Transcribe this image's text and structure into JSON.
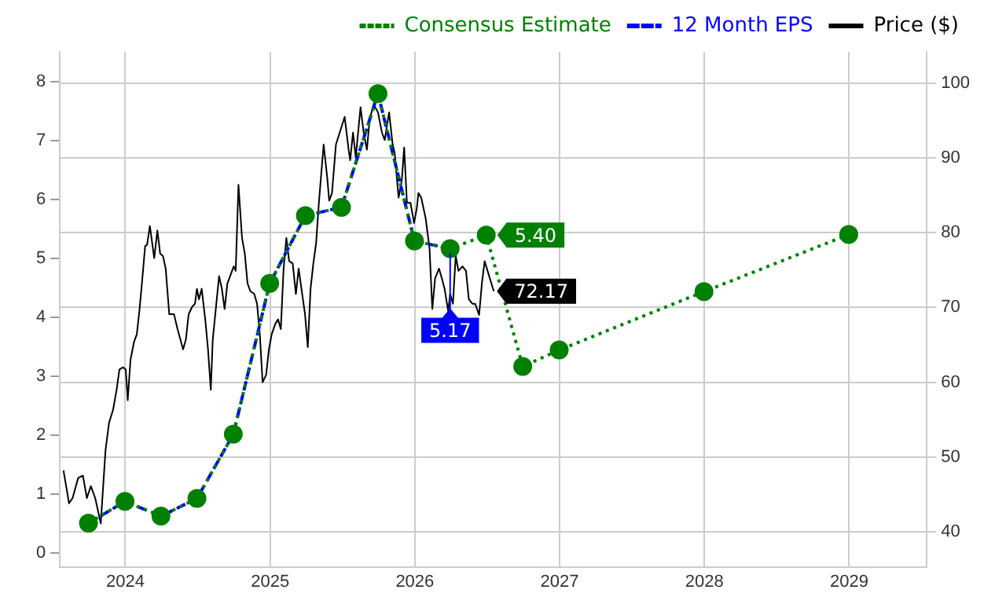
{
  "chart_data": {
    "type": "line",
    "legend": "top right",
    "grid": true,
    "xlim": [
      "2023-07-20",
      "2029-07-16"
    ],
    "xticks": [
      "2024",
      "2025",
      "2026",
      "2027",
      "2028",
      "2029"
    ],
    "ylim": [
      -0.23,
      8.51
    ],
    "yticks": [
      0,
      1,
      2,
      3,
      4,
      5,
      6,
      7,
      8
    ],
    "y2lim": [
      35.3,
      104.2
    ],
    "y2ticks": [
      40,
      50,
      60,
      70,
      80,
      90,
      100
    ],
    "series": [
      {
        "name": "Consensus Estimate",
        "color": "#008000",
        "line_style": "dotted",
        "marker": "circle",
        "x": [
          "2023-09-30",
          "2023-12-31",
          "2024-03-31",
          "2024-06-30",
          "2024-09-30",
          "2024-12-31",
          "2025-03-31",
          "2025-06-30",
          "2025-09-30",
          "2025-12-31",
          "2026-03-31",
          "2026-06-30",
          "2026-09-30",
          "2026-12-31",
          "2027-12-31",
          "2028-12-31"
        ],
        "values": [
          0.51,
          0.88,
          0.63,
          0.93,
          2.02,
          4.58,
          5.73,
          5.87,
          7.8,
          5.3,
          5.17,
          5.4,
          3.17,
          3.45,
          4.44,
          5.41
        ],
        "value_labels": [
          null,
          null,
          null,
          null,
          null,
          null,
          null,
          null,
          null,
          null,
          null,
          "5.40",
          null,
          null,
          null,
          null
        ]
      },
      {
        "name": "12 Month EPS",
        "color": "#0000ff",
        "line_style": "dashed",
        "marker": "none",
        "x": [
          "2023-09-30",
          "2023-12-31",
          "2024-03-31",
          "2024-06-30",
          "2024-09-30",
          "2024-12-31",
          "2025-03-31",
          "2025-06-30",
          "2025-09-30",
          "2025-12-31",
          "2026-03-31"
        ],
        "values": [
          0.51,
          0.88,
          0.63,
          0.93,
          2.02,
          4.58,
          5.73,
          5.87,
          7.8,
          5.3,
          5.17
        ],
        "value_labels": [
          null,
          null,
          null,
          null,
          null,
          null,
          null,
          null,
          null,
          null,
          "5.17"
        ]
      },
      {
        "name": "Price ($)",
        "color": "#000000",
        "axis": "y2",
        "line_style": "solid",
        "marker": "none",
        "x": [
          "2023-07-29",
          "2023-08-12",
          "2023-08-21",
          "2023-09-04",
          "2023-09-16",
          "2023-09-26",
          "2023-10-06",
          "2023-10-17",
          "2023-10-24",
          "2023-10-31",
          "2023-11-12",
          "2023-11-21",
          "2023-12-01",
          "2023-12-10",
          "2023-12-17",
          "2023-12-26",
          "2024-01-02",
          "2024-01-07",
          "2024-01-14",
          "2024-01-23",
          "2024-01-30",
          "2024-02-06",
          "2024-02-13",
          "2024-02-20",
          "2024-02-25",
          "2024-03-03",
          "2024-03-14",
          "2024-03-22",
          "2024-03-29",
          "2024-04-05",
          "2024-04-12",
          "2024-04-21",
          "2024-05-03",
          "2024-05-12",
          "2024-05-26",
          "2024-06-02",
          "2024-06-09",
          "2024-06-18",
          "2024-06-25",
          "2024-06-30",
          "2024-07-05",
          "2024-07-12",
          "2024-07-21",
          "2024-07-28",
          "2024-08-04",
          "2024-08-09",
          "2024-08-18",
          "2024-08-25",
          "2024-09-01",
          "2024-09-08",
          "2024-09-15",
          "2024-09-24",
          "2024-10-01",
          "2024-10-06",
          "2024-10-13",
          "2024-10-22",
          "2024-10-29",
          "2024-11-05",
          "2024-11-12",
          "2024-11-22",
          "2024-11-29",
          "2024-12-06",
          "2024-12-13",
          "2024-12-22",
          "2024-12-29",
          "2025-01-05",
          "2025-01-14",
          "2025-01-21",
          "2025-01-28",
          "2025-02-04",
          "2025-02-11",
          "2025-02-18",
          "2025-02-27",
          "2025-03-07",
          "2025-03-14",
          "2025-03-21",
          "2025-03-30",
          "2025-04-06",
          "2025-04-13",
          "2025-04-20",
          "2025-04-27",
          "2025-05-04",
          "2025-05-16",
          "2025-05-25",
          "2025-05-30",
          "2025-06-06",
          "2025-06-16",
          "2025-07-08",
          "2025-07-18",
          "2025-07-22",
          "2025-07-29",
          "2025-08-05",
          "2025-08-17",
          "2025-08-25",
          "2025-09-02",
          "2025-09-09",
          "2025-09-19",
          "2025-09-30",
          "2025-10-10",
          "2025-10-17",
          "2025-10-28",
          "2025-11-06",
          "2025-11-11",
          "2025-11-21",
          "2025-11-29",
          "2025-12-05",
          "2025-12-12",
          "2025-12-21",
          "2025-12-30",
          "2026-01-06",
          "2026-01-10",
          "2026-01-17",
          "2026-01-28",
          "2026-02-07",
          "2026-02-14",
          "2026-02-21",
          "2026-03-03",
          "2026-03-10",
          "2026-03-17",
          "2026-03-26",
          "2026-03-31",
          "2026-04-07",
          "2026-04-14",
          "2026-04-21",
          "2026-05-01",
          "2026-05-10",
          "2026-05-17",
          "2026-05-26",
          "2026-06-02",
          "2026-06-12",
          "2026-06-19",
          "2026-06-26",
          "2026-07-05",
          "2026-07-19"
        ],
        "values": [
          48.2,
          43.8,
          44.5,
          47.2,
          47.5,
          44.5,
          46.1,
          44.5,
          42.8,
          41.1,
          50.9,
          54.6,
          56.3,
          59.0,
          61.7,
          62.0,
          61.7,
          57.6,
          63.0,
          65.4,
          66.4,
          69.8,
          73.9,
          78.2,
          78.4,
          80.9,
          76.6,
          80.3,
          77.2,
          76.9,
          75.2,
          69.1,
          69.1,
          67.1,
          64.4,
          65.7,
          69.1,
          70.1,
          70.5,
          72.5,
          71.1,
          72.5,
          68.4,
          64.4,
          59.0,
          65.7,
          70.5,
          74.2,
          72.5,
          69.8,
          73.2,
          74.5,
          75.5,
          74.9,
          86.4,
          79.3,
          77.2,
          73.2,
          72.2,
          71.8,
          70.5,
          66.4,
          60.0,
          61.0,
          64.4,
          66.4,
          67.8,
          68.4,
          67.1,
          75.2,
          79.3,
          76.2,
          75.9,
          71.8,
          75.2,
          72.5,
          69.1,
          64.7,
          72.5,
          75.9,
          78.6,
          84.0,
          91.8,
          87.4,
          84.3,
          85.3,
          91.8,
          95.5,
          91.1,
          89.7,
          93.4,
          90.1,
          96.8,
          93.4,
          91.1,
          95.1,
          97.2,
          96.1,
          93.4,
          92.4,
          96.1,
          91.8,
          90.7,
          84.7,
          87.0,
          91.4,
          84.0,
          84.0,
          81.3,
          83.3,
          85.3,
          84.7,
          82.0,
          77.9,
          69.8,
          73.9,
          75.2,
          73.9,
          72.5,
          69.5,
          71.8,
          70.5,
          76.9,
          74.9,
          75.5,
          74.9,
          71.1,
          70.5,
          70.5,
          69.0,
          73.2,
          76.2,
          74.6,
          72.17
        ],
        "value_labels": [
          null,
          null,
          null,
          null,
          null,
          null,
          null,
          null,
          null,
          null,
          null,
          null,
          null,
          null,
          null,
          null,
          null,
          null,
          null,
          null,
          null,
          null,
          null,
          null,
          null,
          null,
          null,
          null,
          null,
          null,
          null,
          null,
          null,
          null,
          null,
          null,
          null,
          null,
          null,
          null,
          null,
          null,
          null,
          null,
          null,
          null,
          null,
          null,
          null,
          null,
          null,
          null,
          null,
          null,
          null,
          null,
          null,
          null,
          null,
          null,
          null,
          null,
          null,
          null,
          null,
          null,
          null,
          null,
          null,
          null,
          null,
          null,
          null,
          null,
          null,
          null,
          null,
          null,
          null,
          null,
          null,
          null,
          null,
          null,
          null,
          null,
          null,
          null,
          null,
          null,
          null,
          null,
          null,
          null,
          null,
          null,
          null,
          null,
          null,
          null,
          null,
          null,
          null,
          null,
          null,
          null,
          null,
          null,
          null,
          null,
          null,
          null,
          null,
          null,
          null,
          null,
          null,
          null,
          null,
          null,
          null,
          null,
          null,
          null,
          null,
          null,
          null,
          null,
          null,
          null,
          null,
          null,
          null,
          "72.17"
        ]
      }
    ]
  }
}
